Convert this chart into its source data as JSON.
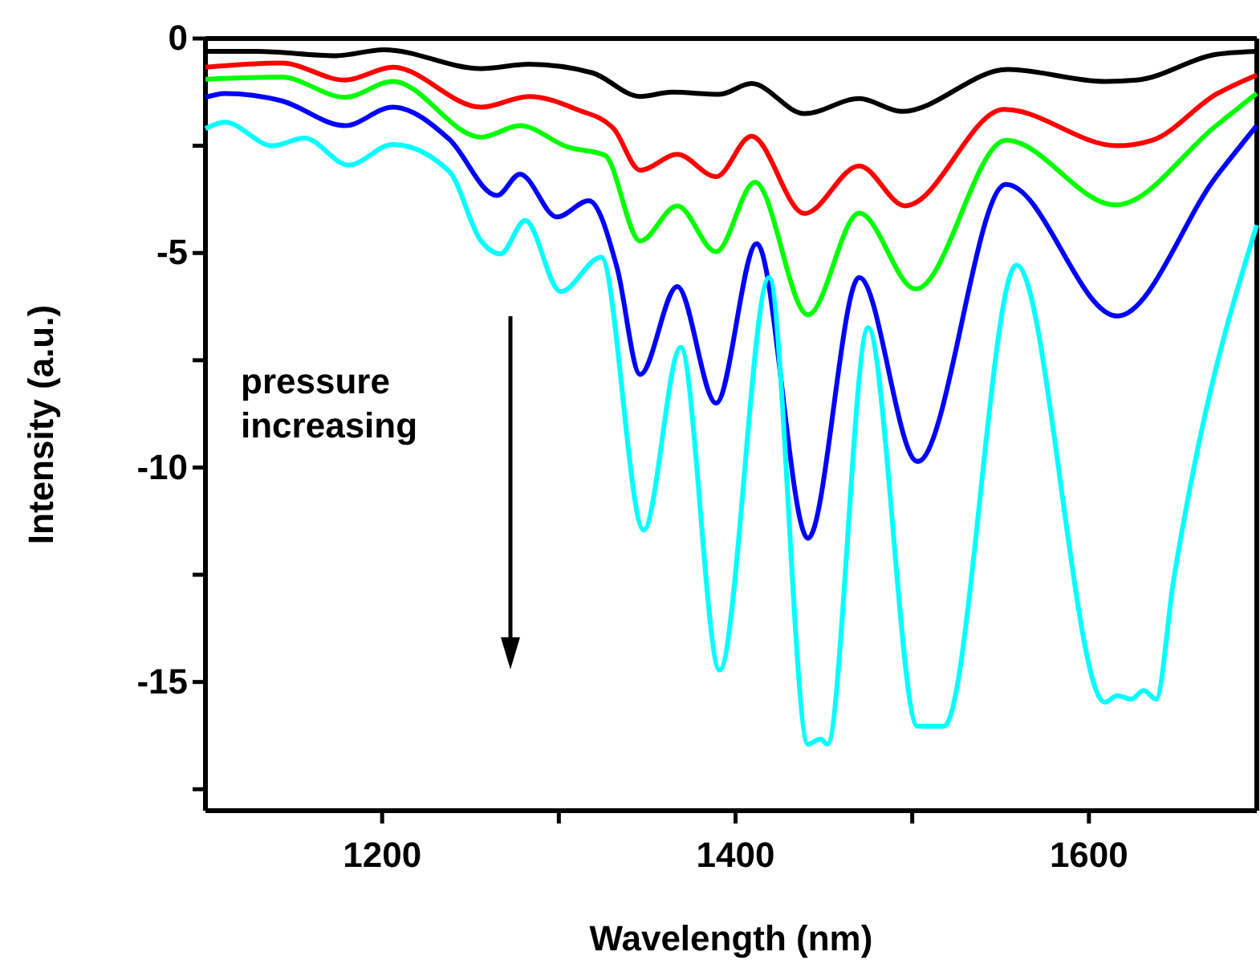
{
  "chart_data": {
    "type": "line",
    "xlabel": "Wavelength (nm)",
    "ylabel": "Intensity (a.u.)",
    "xlim": [
      1100,
      1695
    ],
    "xticks": [
      1200,
      {
        "value": 1300,
        "label": null
      },
      1400,
      {
        "value": 1500,
        "label": null
      },
      1600
    ],
    "ylim": [
      -18,
      0
    ],
    "yticks": [
      0,
      {
        "value": -2.5,
        "label": null
      },
      -5,
      {
        "value": -7.5,
        "label": null
      },
      -10,
      {
        "value": -12.5,
        "label": null
      },
      -15,
      {
        "value": -17.5,
        "label": null
      }
    ],
    "grid": false,
    "marker": "none",
    "line_style": "solid",
    "annotations": [
      "pressure increasing"
    ],
    "series": [
      {
        "color": "#000000",
        "x": [
          1100,
          1129,
          1174,
          1201,
          1256,
          1283,
          1319,
          1346,
          1364,
          1391,
          1409,
          1439,
          1470,
          1494,
          1554,
          1609,
          1627,
          1672,
          1695
        ],
        "values": [
          -0.3,
          -0.3,
          -0.4,
          -0.26,
          -0.7,
          -0.6,
          -0.8,
          -1.35,
          -1.25,
          -1.3,
          -1.05,
          -1.75,
          -1.4,
          -1.7,
          -0.72,
          -1.0,
          -0.97,
          -0.37,
          -0.3
        ]
      },
      {
        "color": "#ff0000",
        "x": [
          1100,
          1143,
          1179,
          1206,
          1256,
          1283,
          1310,
          1331,
          1346,
          1367,
          1389,
          1409,
          1439,
          1470,
          1496,
          1552,
          1616,
          1636,
          1672,
          1695
        ],
        "values": [
          -0.67,
          -0.57,
          -0.97,
          -0.67,
          -1.6,
          -1.35,
          -1.65,
          -2.1,
          -3.07,
          -2.7,
          -3.22,
          -2.28,
          -4.08,
          -2.97,
          -3.9,
          -1.65,
          -2.5,
          -2.37,
          -1.3,
          -0.85
        ]
      },
      {
        "color": "#00ff00",
        "x": [
          1100,
          1143,
          1179,
          1206,
          1256,
          1278,
          1305,
          1326,
          1346,
          1367,
          1389,
          1411,
          1441,
          1470,
          1502,
          1553,
          1615,
          1672,
          1695
        ],
        "values": [
          -0.95,
          -0.9,
          -1.37,
          -1.0,
          -2.3,
          -2.03,
          -2.53,
          -2.72,
          -4.72,
          -3.9,
          -4.97,
          -3.35,
          -6.44,
          -4.07,
          -5.84,
          -2.37,
          -3.88,
          -2.03,
          -1.28
        ]
      },
      {
        "color": "#0000ff",
        "x": [
          1100,
          1111,
          1143,
          1179,
          1206,
          1238,
          1265,
          1278,
          1299,
          1317,
          1333,
          1346,
          1367,
          1389,
          1412,
          1441,
          1470,
          1503,
          1553,
          1616,
          1672,
          1695
        ],
        "values": [
          -1.37,
          -1.28,
          -1.45,
          -2.03,
          -1.6,
          -2.35,
          -3.66,
          -3.16,
          -4.16,
          -3.78,
          -5.35,
          -7.83,
          -5.78,
          -8.5,
          -4.78,
          -11.65,
          -5.57,
          -9.86,
          -3.4,
          -6.47,
          -3.22,
          -2.03
        ]
      },
      {
        "color": "#00ffff",
        "x": [
          1100,
          1111,
          1138,
          1156,
          1181,
          1206,
          1238,
          1256,
          1267,
          1281,
          1301,
          1324,
          1348,
          1369,
          1391,
          1419,
          1441,
          1448,
          1452,
          1475,
          1503,
          1518,
          1559,
          1609,
          1616,
          1624,
          1631,
          1638,
          1648,
          1658,
          1695
        ],
        "values": [
          -2.1,
          -1.95,
          -2.5,
          -2.32,
          -2.95,
          -2.47,
          -3.1,
          -4.72,
          -5.02,
          -4.24,
          -5.9,
          -5.1,
          -11.46,
          -7.2,
          -14.72,
          -5.57,
          -16.45,
          -16.33,
          -16.45,
          -6.74,
          -16.03,
          -16.03,
          -5.28,
          -15.47,
          -15.32,
          -15.4,
          -15.2,
          -15.4,
          -12.6,
          -10.3,
          -4.35
        ]
      }
    ]
  }
}
